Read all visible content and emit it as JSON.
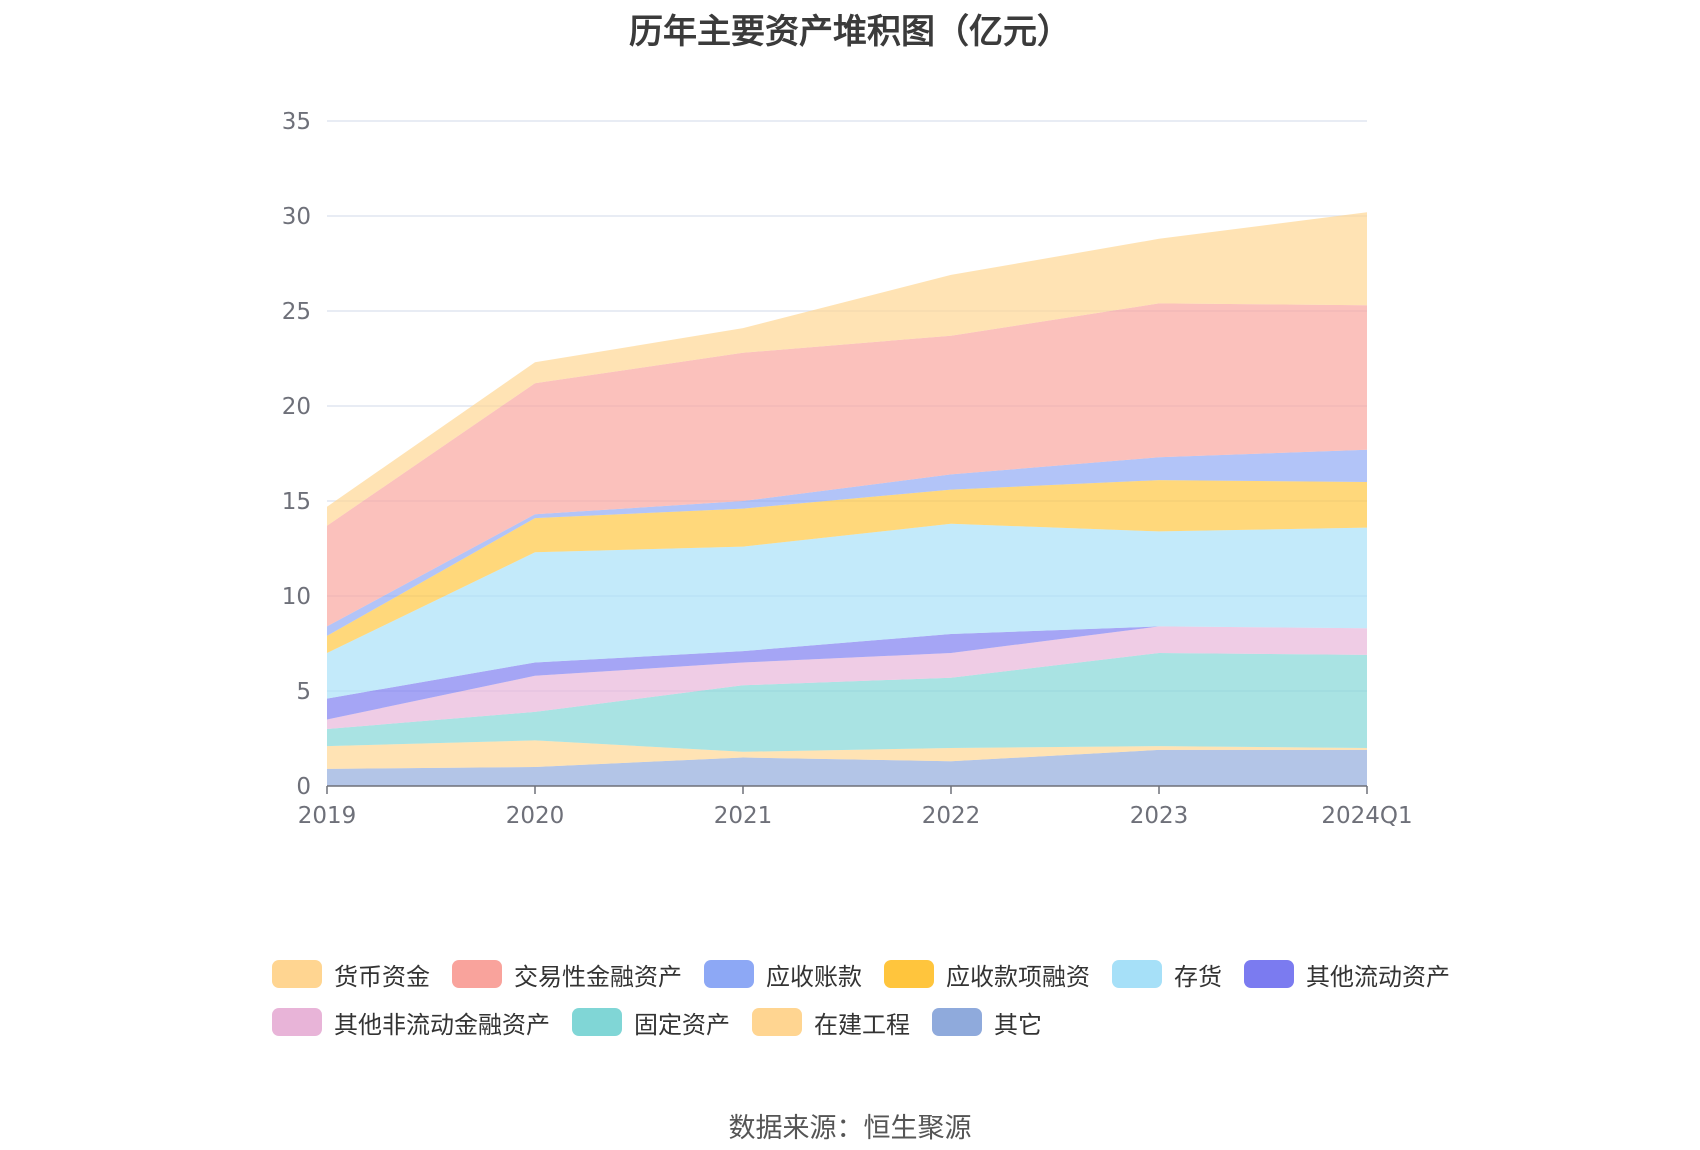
{
  "chart_data": {
    "type": "area",
    "stacked": true,
    "title": "历年主要资产堆积图（亿元）",
    "x": [
      "2019",
      "2020",
      "2021",
      "2022",
      "2023",
      "2024Q1"
    ],
    "yticks": [
      "0",
      "5",
      "10",
      "15",
      "20",
      "25",
      "30",
      "35"
    ],
    "ylim": [
      0,
      35
    ],
    "grid": true,
    "legend_position": "bottom",
    "series": [
      {
        "name": "其它",
        "color": "#8faadc",
        "values": [
          0.9,
          1.0,
          1.5,
          1.3,
          1.9,
          1.9
        ]
      },
      {
        "name": "在建工程",
        "color": "#ffd591",
        "values": [
          1.2,
          1.4,
          0.3,
          0.7,
          0.2,
          0.1
        ]
      },
      {
        "name": "固定资产",
        "color": "#80d6d6",
        "values": [
          0.9,
          1.5,
          3.5,
          3.7,
          4.9,
          4.9
        ]
      },
      {
        "name": "其他非流动金融资产",
        "color": "#e8b4d8",
        "values": [
          0.5,
          1.9,
          1.2,
          1.3,
          1.4,
          1.4
        ]
      },
      {
        "name": "其他流动资产",
        "color": "#7b7bf0",
        "values": [
          1.1,
          0.7,
          0.6,
          1.0,
          0.0,
          0.0
        ]
      },
      {
        "name": "存货",
        "color": "#a6e0f8",
        "values": [
          2.4,
          5.8,
          5.5,
          5.8,
          5.0,
          5.3
        ]
      },
      {
        "name": "应收款项融资",
        "color": "#ffc53d",
        "values": [
          0.9,
          1.8,
          2.0,
          1.8,
          2.7,
          2.4
        ]
      },
      {
        "name": "应收账款",
        "color": "#8da8f5",
        "values": [
          0.5,
          0.2,
          0.4,
          0.8,
          1.2,
          1.7
        ]
      },
      {
        "name": "交易性金融资产",
        "color": "#f9a39c",
        "values": [
          5.3,
          6.9,
          7.8,
          7.3,
          8.1,
          7.6
        ]
      },
      {
        "name": "货币资金",
        "color": "#ffd591",
        "values": [
          1.0,
          1.1,
          1.3,
          3.2,
          3.4,
          4.9
        ]
      }
    ]
  },
  "legend": {
    "rows": [
      [
        {
          "label": "货币资金",
          "color": "#ffd591"
        },
        {
          "label": "交易性金融资产",
          "color": "#f9a39c"
        },
        {
          "label": "应收账款",
          "color": "#8da8f5"
        },
        {
          "label": "应收款项融资",
          "color": "#ffc53d"
        },
        {
          "label": "存货",
          "color": "#a6e0f8"
        },
        {
          "label": "其他流动资产",
          "color": "#7b7bf0"
        }
      ],
      [
        {
          "label": "其他非流动金融资产",
          "color": "#e8b4d8"
        },
        {
          "label": "固定资产",
          "color": "#80d6d6"
        },
        {
          "label": "在建工程",
          "color": "#ffd591"
        },
        {
          "label": "其它",
          "color": "#8faadc"
        }
      ]
    ]
  },
  "source": "数据来源：恒生聚源"
}
